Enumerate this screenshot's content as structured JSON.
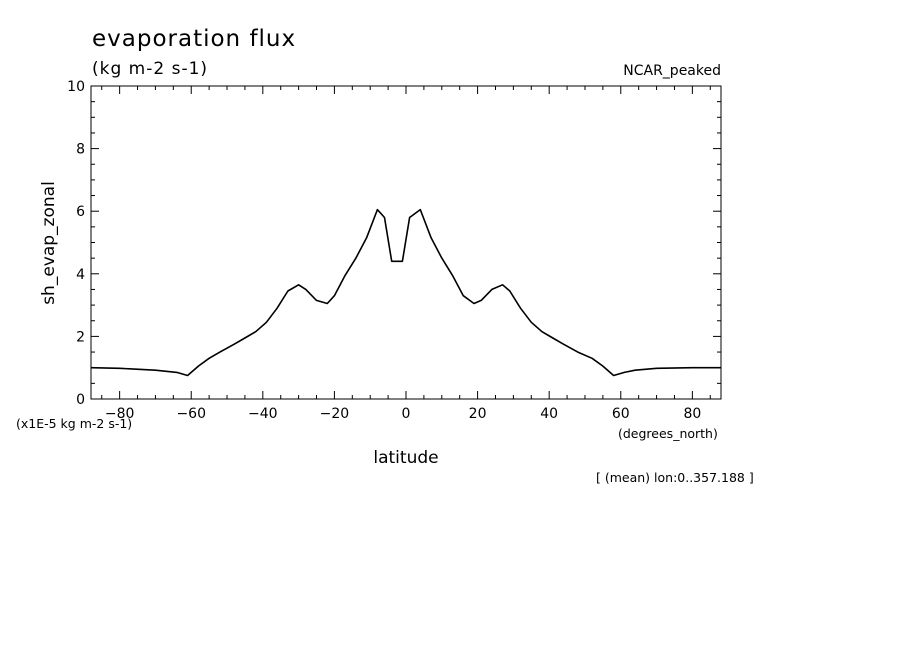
{
  "chart_data": {
    "type": "line",
    "title": "evaporation flux",
    "units": "(kg m-2 s-1)",
    "tag": "NCAR_peaked",
    "xlabel": "latitude",
    "xunits": "(degrees_north)",
    "ylabel": "sh_evap_zonal",
    "yscale_note": "(x1E-5 kg m-2 s-1)",
    "footnote": "[ (mean) lon:0..357.188 ]",
    "xlim": [
      -88,
      88
    ],
    "ylim": [
      0,
      10
    ],
    "xticks": [
      -80,
      -60,
      -40,
      -20,
      0,
      20,
      40,
      60,
      80
    ],
    "yticks": [
      0,
      2,
      4,
      6,
      8,
      10
    ],
    "series": [
      {
        "x": [
          -88,
          -80,
          -70,
          -64,
          -61,
          -58,
          -55,
          -52,
          -48,
          -45,
          -42,
          -39,
          -36,
          -33,
          -30,
          -28,
          -25,
          -22,
          -20,
          -17,
          -14,
          -11,
          -8,
          -6,
          -4,
          -1,
          1,
          4,
          7,
          10,
          13,
          16,
          19,
          21,
          24,
          27,
          29,
          32,
          35,
          38,
          41,
          44,
          48,
          52,
          55,
          58,
          61,
          64,
          70,
          80,
          88
        ],
        "y": [
          1.0,
          0.98,
          0.92,
          0.85,
          0.75,
          1.05,
          1.3,
          1.5,
          1.75,
          1.95,
          2.15,
          2.45,
          2.9,
          3.45,
          3.65,
          3.5,
          3.15,
          3.05,
          3.3,
          3.95,
          4.5,
          5.15,
          6.05,
          5.8,
          4.4,
          4.4,
          5.8,
          6.05,
          5.15,
          4.5,
          3.95,
          3.3,
          3.05,
          3.15,
          3.5,
          3.65,
          3.45,
          2.9,
          2.45,
          2.15,
          1.95,
          1.75,
          1.5,
          1.3,
          1.05,
          0.75,
          0.85,
          0.92,
          0.98,
          1.0,
          1.0
        ]
      }
    ]
  }
}
